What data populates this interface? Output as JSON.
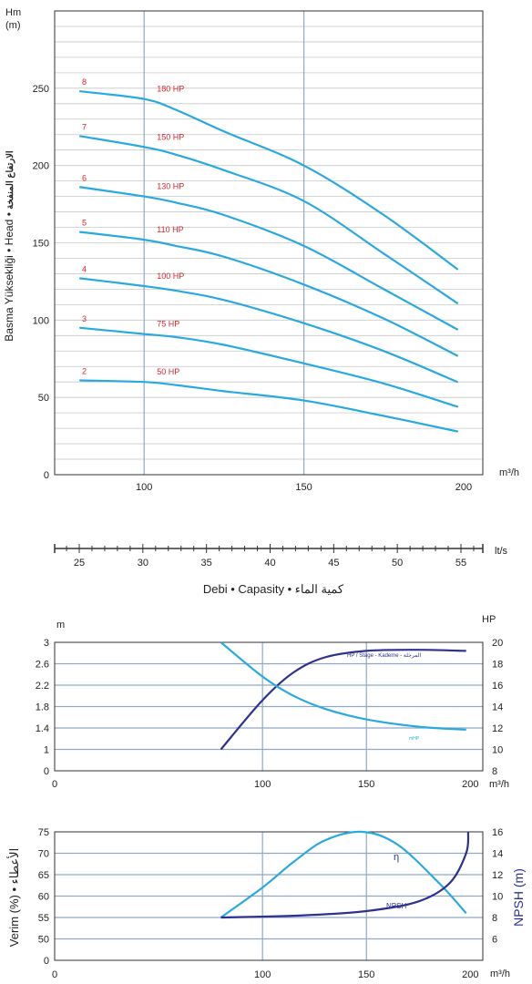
{
  "colors": {
    "curve": "#29a9e1",
    "dark": "#2e3192",
    "label_red": "#d7262e",
    "grid_minor": "#c8c8c8",
    "grid_major": "#8fa8c4",
    "axis": "#333333"
  },
  "head_chart": {
    "y_unit_line1": "Hm",
    "y_unit_line2": "(m)",
    "y_axis_label": "Basma Yüksekliği • Head • ",
    "y_axis_label_ar": "الارتفاع المنفخة",
    "x_unit": "m³/h",
    "x_ticks": [
      100,
      150,
      200
    ],
    "y_ticks": [
      0,
      50,
      100,
      150,
      200,
      250
    ],
    "x_range": [
      72,
      206
    ],
    "y_range": [
      0,
      300
    ]
  },
  "lts_axis": {
    "unit": "lt/s",
    "ticks": [
      25,
      30,
      35,
      40,
      45,
      50,
      55
    ]
  },
  "flow_title": "Debi • Capasity • كمية الماء",
  "hp_chart": {
    "left_unit": "m",
    "right_unit": "HP",
    "x_unit": "m³/h",
    "left_ticks": [
      "0",
      "1",
      "1.4",
      "1.8",
      "2.2",
      "2.6",
      "3"
    ],
    "right_ticks": [
      8,
      10,
      12,
      14,
      16,
      18,
      20
    ],
    "x_ticks": [
      0,
      100,
      150,
      200
    ],
    "hp_label": "HP / Stage - Kademe - المرحلة",
    "npshr_label": "mHP"
  },
  "eff_chart": {
    "left_label": "Verim (%) • الأعطاء",
    "right_label": "NPSH (m)",
    "left_ticks": [
      0,
      50,
      55,
      60,
      65,
      70,
      75
    ],
    "right_ticks": [
      6,
      8,
      10,
      12,
      14,
      16
    ],
    "x_unit": "m³/h",
    "x_ticks": [
      0,
      100,
      150,
      200
    ],
    "eta_label": "η",
    "npsh_label": "NPSH"
  },
  "chart_data": [
    {
      "type": "line",
      "title": "",
      "xlabel": "m³/h",
      "ylabel": "Basma Yüksekliği • Head • الارتفاع المنفخة",
      "xlim": [
        72,
        206
      ],
      "ylim": [
        0,
        300
      ],
      "series": [
        {
          "name": "8",
          "power": "180 HP",
          "points": [
            [
              80,
              248
            ],
            [
              100,
              243
            ],
            [
              110,
              236
            ],
            [
              125,
              222
            ],
            [
              150,
              200
            ],
            [
              175,
              168
            ],
            [
              198,
              133
            ]
          ]
        },
        {
          "name": "7",
          "power": "150 HP",
          "points": [
            [
              80,
              219
            ],
            [
              100,
              212
            ],
            [
              110,
              207
            ],
            [
              125,
              197
            ],
            [
              150,
              177
            ],
            [
              175,
              143
            ],
            [
              198,
              111
            ]
          ]
        },
        {
          "name": "6",
          "power": "130 HP",
          "points": [
            [
              80,
              186
            ],
            [
              100,
              180
            ],
            [
              110,
              176
            ],
            [
              125,
              168
            ],
            [
              150,
              148
            ],
            [
              175,
              120
            ],
            [
              198,
              94
            ]
          ]
        },
        {
          "name": "5",
          "power": "110 HP",
          "points": [
            [
              80,
              157
            ],
            [
              100,
              152
            ],
            [
              110,
              148
            ],
            [
              125,
              141
            ],
            [
              150,
              123
            ],
            [
              175,
              101
            ],
            [
              198,
              77
            ]
          ]
        },
        {
          "name": "4",
          "power": "100 HP",
          "points": [
            [
              80,
              127
            ],
            [
              100,
              122
            ],
            [
              110,
              119
            ],
            [
              125,
              113
            ],
            [
              150,
              98
            ],
            [
              175,
              80
            ],
            [
              198,
              60
            ]
          ]
        },
        {
          "name": "3",
          "power": "75 HP",
          "points": [
            [
              80,
              95
            ],
            [
              100,
              91
            ],
            [
              110,
              89
            ],
            [
              125,
              84
            ],
            [
              150,
              72
            ],
            [
              175,
              59
            ],
            [
              198,
              44
            ]
          ]
        },
        {
          "name": "2",
          "power": "50 HP",
          "points": [
            [
              80,
              61
            ],
            [
              100,
              60
            ],
            [
              110,
              58
            ],
            [
              125,
              54
            ],
            [
              150,
              48
            ],
            [
              175,
              38
            ],
            [
              198,
              28
            ]
          ]
        }
      ]
    },
    {
      "type": "line",
      "title": "",
      "xlabel": "m³/h",
      "xlim": [
        0,
        206
      ],
      "series": [
        {
          "name": "HP / Stage - Kademe - المرحلة",
          "axis": "right",
          "ylim": [
            8,
            20
          ],
          "points": [
            [
              80,
              10
            ],
            [
              100,
              14.6
            ],
            [
              115,
              17.2
            ],
            [
              130,
              18.6
            ],
            [
              150,
              19.2
            ],
            [
              175,
              19.3
            ],
            [
              198,
              19.2
            ]
          ]
        },
        {
          "name": "mHP",
          "axis": "left",
          "ylim": [
            0,
            3
          ],
          "points": [
            [
              80,
              3.0
            ],
            [
              100,
              2.2
            ],
            [
              115,
              1.75
            ],
            [
              130,
              1.45
            ],
            [
              150,
              1.2
            ],
            [
              175,
              1.03
            ],
            [
              198,
              0.96
            ]
          ]
        }
      ]
    },
    {
      "type": "line",
      "title": "",
      "xlabel": "m³/h",
      "xlim": [
        0,
        206
      ],
      "series": [
        {
          "name": "η",
          "axis": "left",
          "ylim": [
            0,
            75
          ],
          "points": [
            [
              80,
              55
            ],
            [
              100,
              62
            ],
            [
              115,
              68
            ],
            [
              130,
              73
            ],
            [
              148,
              75
            ],
            [
              165,
              72
            ],
            [
              185,
              63
            ],
            [
              198,
              56
            ]
          ]
        },
        {
          "name": "NPSH",
          "axis": "right",
          "ylim": [
            6,
            16
          ],
          "points": [
            [
              80,
              8
            ],
            [
              120,
              8.2
            ],
            [
              150,
              8.6
            ],
            [
              175,
              9.5
            ],
            [
              190,
              11.2
            ],
            [
              198,
              14
            ],
            [
              199,
              16
            ]
          ]
        }
      ]
    }
  ]
}
